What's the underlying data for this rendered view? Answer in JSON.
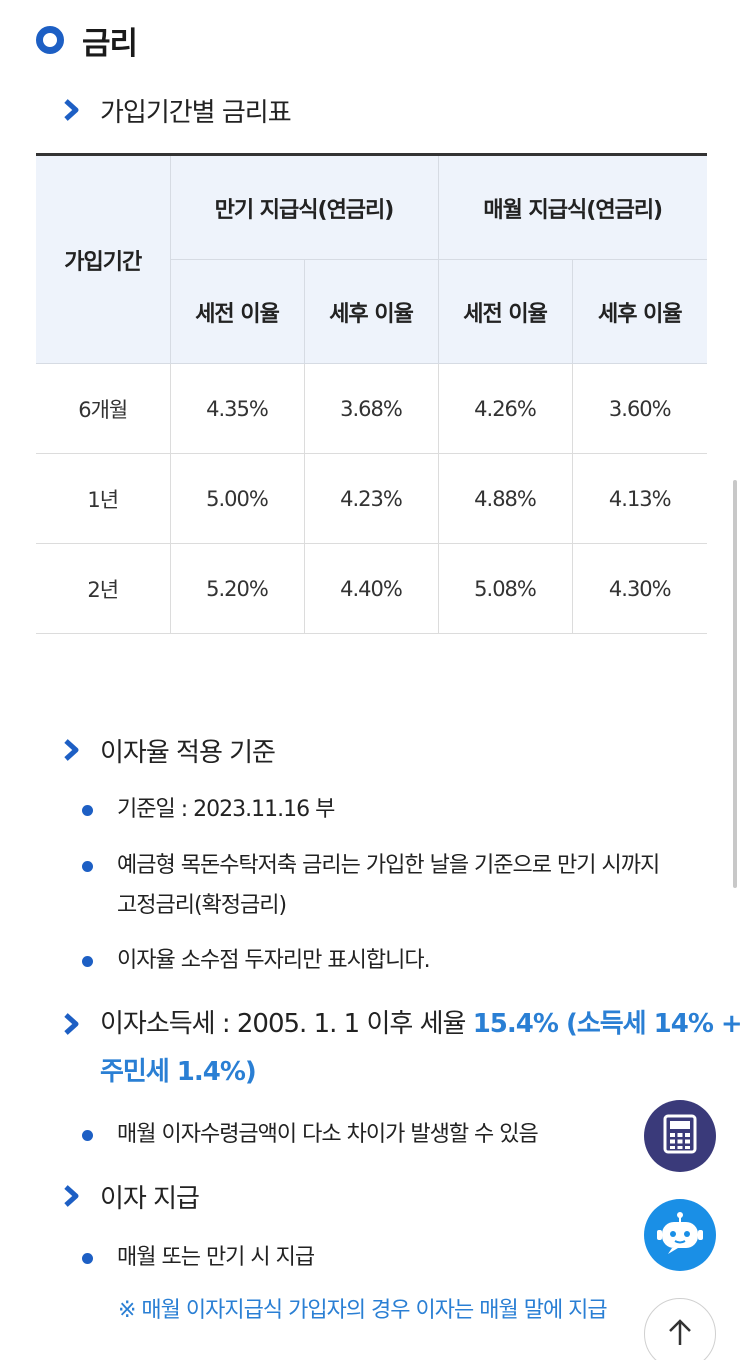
{
  "section": {
    "title": "금리"
  },
  "rate_table": {
    "heading": "가입기간별 금리표",
    "col_period": "가입기간",
    "group_maturity": "만기 지급식(연금리)",
    "group_monthly": "매월 지급식(연금리)",
    "sub_pre_tax": "세전 이율",
    "sub_post_tax": "세후 이율",
    "rows": [
      {
        "period": "6개월",
        "m_pre": "4.35%",
        "m_post": "3.68%",
        "mo_pre": "4.26%",
        "mo_post": "3.60%"
      },
      {
        "period": "1년",
        "m_pre": "5.00%",
        "m_post": "4.23%",
        "mo_pre": "4.88%",
        "mo_post": "4.13%"
      },
      {
        "period": "2년",
        "m_pre": "5.20%",
        "m_post": "4.40%",
        "mo_pre": "5.08%",
        "mo_post": "4.30%"
      }
    ]
  },
  "criteria": {
    "heading": "이자율 적용 기준",
    "items": [
      "기준일 : 2023.11.16 부",
      "예금형 목돈수탁저축 금리는 가입한 날을 기준으로 만기 시까지",
      "고정금리(확정금리)",
      "이자율 소수점 두자리만 표시합니다."
    ]
  },
  "tax": {
    "prefix": "이자소득세 : 2005. 1. 1 이후 세율 ",
    "rate_line1": "15.4% (소득세 14% +",
    "rate_line2": "주민세 1.4%)",
    "item": "매월 이자수령금액이 다소 차이가 발생할 수 있음"
  },
  "payment": {
    "heading": "이자 지급",
    "item": "매월 또는 만기 시 지급",
    "note": "※ 매월 이자지급식 가입자의 경우 이자는 매월 말에 지급"
  },
  "floating": {
    "calculator_icon": "calculator-icon",
    "chatbot_icon": "chatbot-icon",
    "scroll_top_icon": "arrow-up-icon"
  },
  "colors": {
    "accent": "#1d5fc4",
    "highlight": "#2a7fd4",
    "table_header_bg": "#eef3fb"
  }
}
